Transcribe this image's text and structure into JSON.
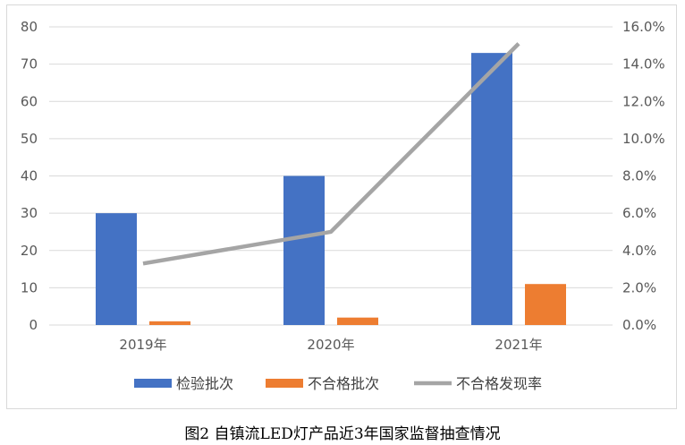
{
  "chart_data": {
    "type": "bar",
    "categories": [
      "2019年",
      "2020年",
      "2021年"
    ],
    "series": [
      {
        "name": "检验批次",
        "type": "bar",
        "axis": "left",
        "color": "#4472C4",
        "values": [
          30,
          40,
          73
        ]
      },
      {
        "name": "不合格批次",
        "type": "bar",
        "axis": "left",
        "color": "#ED7D31",
        "values": [
          1,
          2,
          11
        ]
      },
      {
        "name": "不合格发现率",
        "type": "line",
        "axis": "right",
        "color": "#A5A5A5",
        "values": [
          3.3,
          5.0,
          15.1
        ]
      }
    ],
    "y_left": {
      "range": [
        0,
        80
      ],
      "ticks": [
        "0",
        "10",
        "20",
        "30",
        "40",
        "50",
        "60",
        "70",
        "80"
      ]
    },
    "y_right": {
      "range": [
        0,
        16
      ],
      "ticks": [
        "0.0%",
        "2.0%",
        "4.0%",
        "6.0%",
        "8.0%",
        "10.0%",
        "12.0%",
        "14.0%",
        "16.0%"
      ]
    },
    "grid": true,
    "legend": "bottom"
  },
  "caption": "图2 自镇流LED灯产品近3年国家监督抽查情况"
}
